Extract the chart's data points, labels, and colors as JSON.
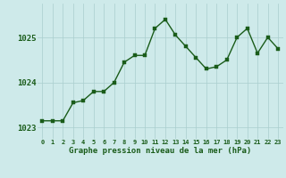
{
  "x": [
    0,
    1,
    2,
    3,
    4,
    5,
    6,
    7,
    8,
    9,
    10,
    11,
    12,
    13,
    14,
    15,
    16,
    17,
    18,
    19,
    20,
    21,
    22,
    23
  ],
  "y": [
    1023.15,
    1023.15,
    1023.15,
    1023.55,
    1023.6,
    1023.8,
    1023.8,
    1024.0,
    1024.45,
    1024.6,
    1024.6,
    1025.2,
    1025.4,
    1025.05,
    1024.8,
    1024.55,
    1024.3,
    1024.35,
    1024.5,
    1025.0,
    1025.2,
    1024.65,
    1025.0,
    1024.75
  ],
  "line_color": "#1a5c1a",
  "marker_color": "#1a5c1a",
  "bg_color": "#ceeaea",
  "grid_color": "#aacece",
  "xlabel": "Graphe pression niveau de la mer (hPa)",
  "xlabel_color": "#1a5c1a",
  "tick_label_color": "#1a5c1a",
  "ylim": [
    1022.75,
    1025.75
  ],
  "yticks": [
    1023,
    1024,
    1025
  ],
  "xticks": [
    0,
    1,
    2,
    3,
    4,
    5,
    6,
    7,
    8,
    9,
    10,
    11,
    12,
    13,
    14,
    15,
    16,
    17,
    18,
    19,
    20,
    21,
    22,
    23
  ],
  "marker_size": 2.5,
  "line_width": 1.0
}
